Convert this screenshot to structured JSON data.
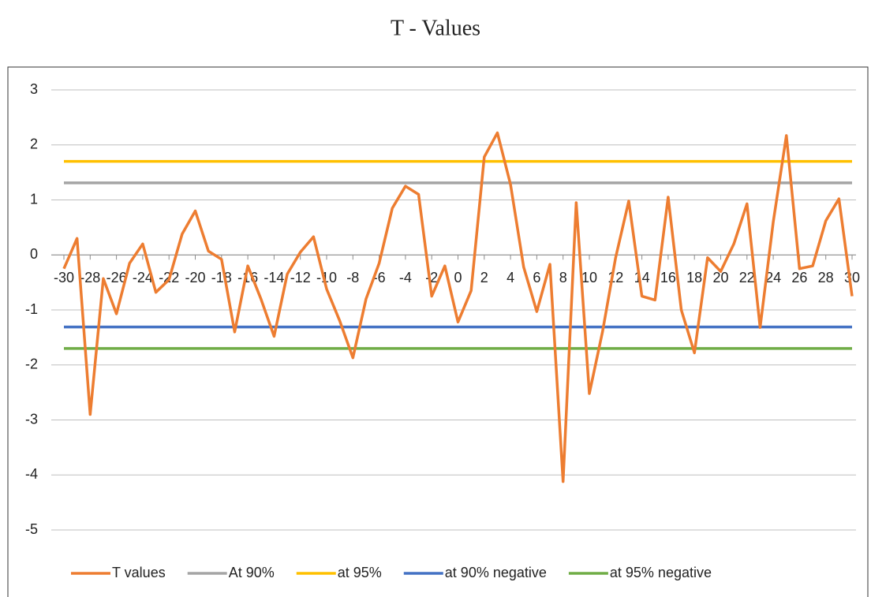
{
  "chart_data": {
    "type": "line",
    "title": "T - Values",
    "xlim": [
      -30,
      30
    ],
    "xticks": [
      -30,
      -28,
      -26,
      -24,
      -22,
      -20,
      -18,
      -16,
      -14,
      -12,
      -10,
      -8,
      -6,
      -4,
      -2,
      0,
      2,
      4,
      6,
      8,
      10,
      12,
      14,
      16,
      18,
      20,
      22,
      24,
      26,
      28,
      30
    ],
    "ylim": [
      -5,
      3
    ],
    "yticks": [
      -5,
      -4,
      -3,
      -2,
      -1,
      0,
      1,
      2,
      3
    ],
    "grid": true,
    "series": [
      {
        "name": "T values",
        "color": "#ed7d31",
        "x": [
          -30,
          -29,
          -28,
          -27,
          -26,
          -25,
          -24,
          -23,
          -22,
          -21,
          -20,
          -19,
          -18,
          -17,
          -16,
          -15,
          -14,
          -13,
          -12,
          -11,
          -10,
          -9,
          -8,
          -7,
          -6,
          -5,
          -4,
          -3,
          -2,
          -1,
          0,
          1,
          2,
          3,
          4,
          5,
          6,
          7,
          8,
          9,
          10,
          11,
          12,
          13,
          14,
          15,
          16,
          17,
          18,
          19,
          20,
          21,
          22,
          23,
          24,
          25,
          26,
          27,
          28,
          29,
          30
        ],
        "values": [
          -0.25,
          0.3,
          -2.9,
          -0.43,
          -1.07,
          -0.15,
          0.2,
          -0.68,
          -0.45,
          0.38,
          0.8,
          0.07,
          -0.08,
          -1.4,
          -0.2,
          -0.8,
          -1.48,
          -0.35,
          0.05,
          0.33,
          -0.62,
          -1.2,
          -1.87,
          -0.8,
          -0.15,
          0.85,
          1.25,
          1.1,
          -0.75,
          -0.2,
          -1.22,
          -0.65,
          1.78,
          2.22,
          1.28,
          -0.22,
          -1.03,
          -0.17,
          -4.12,
          0.95,
          -2.52,
          -1.4,
          -0.05,
          0.98,
          -0.75,
          -0.82,
          1.05,
          -1.0,
          -1.78,
          -0.05,
          -0.3,
          0.2,
          0.93,
          -1.32,
          0.6,
          2.17,
          -0.25,
          -0.2,
          0.62,
          1.02,
          -0.75
        ]
      },
      {
        "name": "At 90%",
        "color": "#a5a5a5",
        "x": [
          -30,
          30
        ],
        "values": [
          1.31,
          1.31
        ]
      },
      {
        "name": "at 95%",
        "color": "#ffc000",
        "x": [
          -30,
          30
        ],
        "values": [
          1.7,
          1.7
        ]
      },
      {
        "name": "at 90% negative",
        "color": "#4472c4",
        "x": [
          -30,
          30
        ],
        "values": [
          -1.31,
          -1.31
        ]
      },
      {
        "name": "at 95% negative",
        "color": "#70ad47",
        "x": [
          -30,
          30
        ],
        "values": [
          -1.7,
          -1.7
        ]
      }
    ]
  }
}
